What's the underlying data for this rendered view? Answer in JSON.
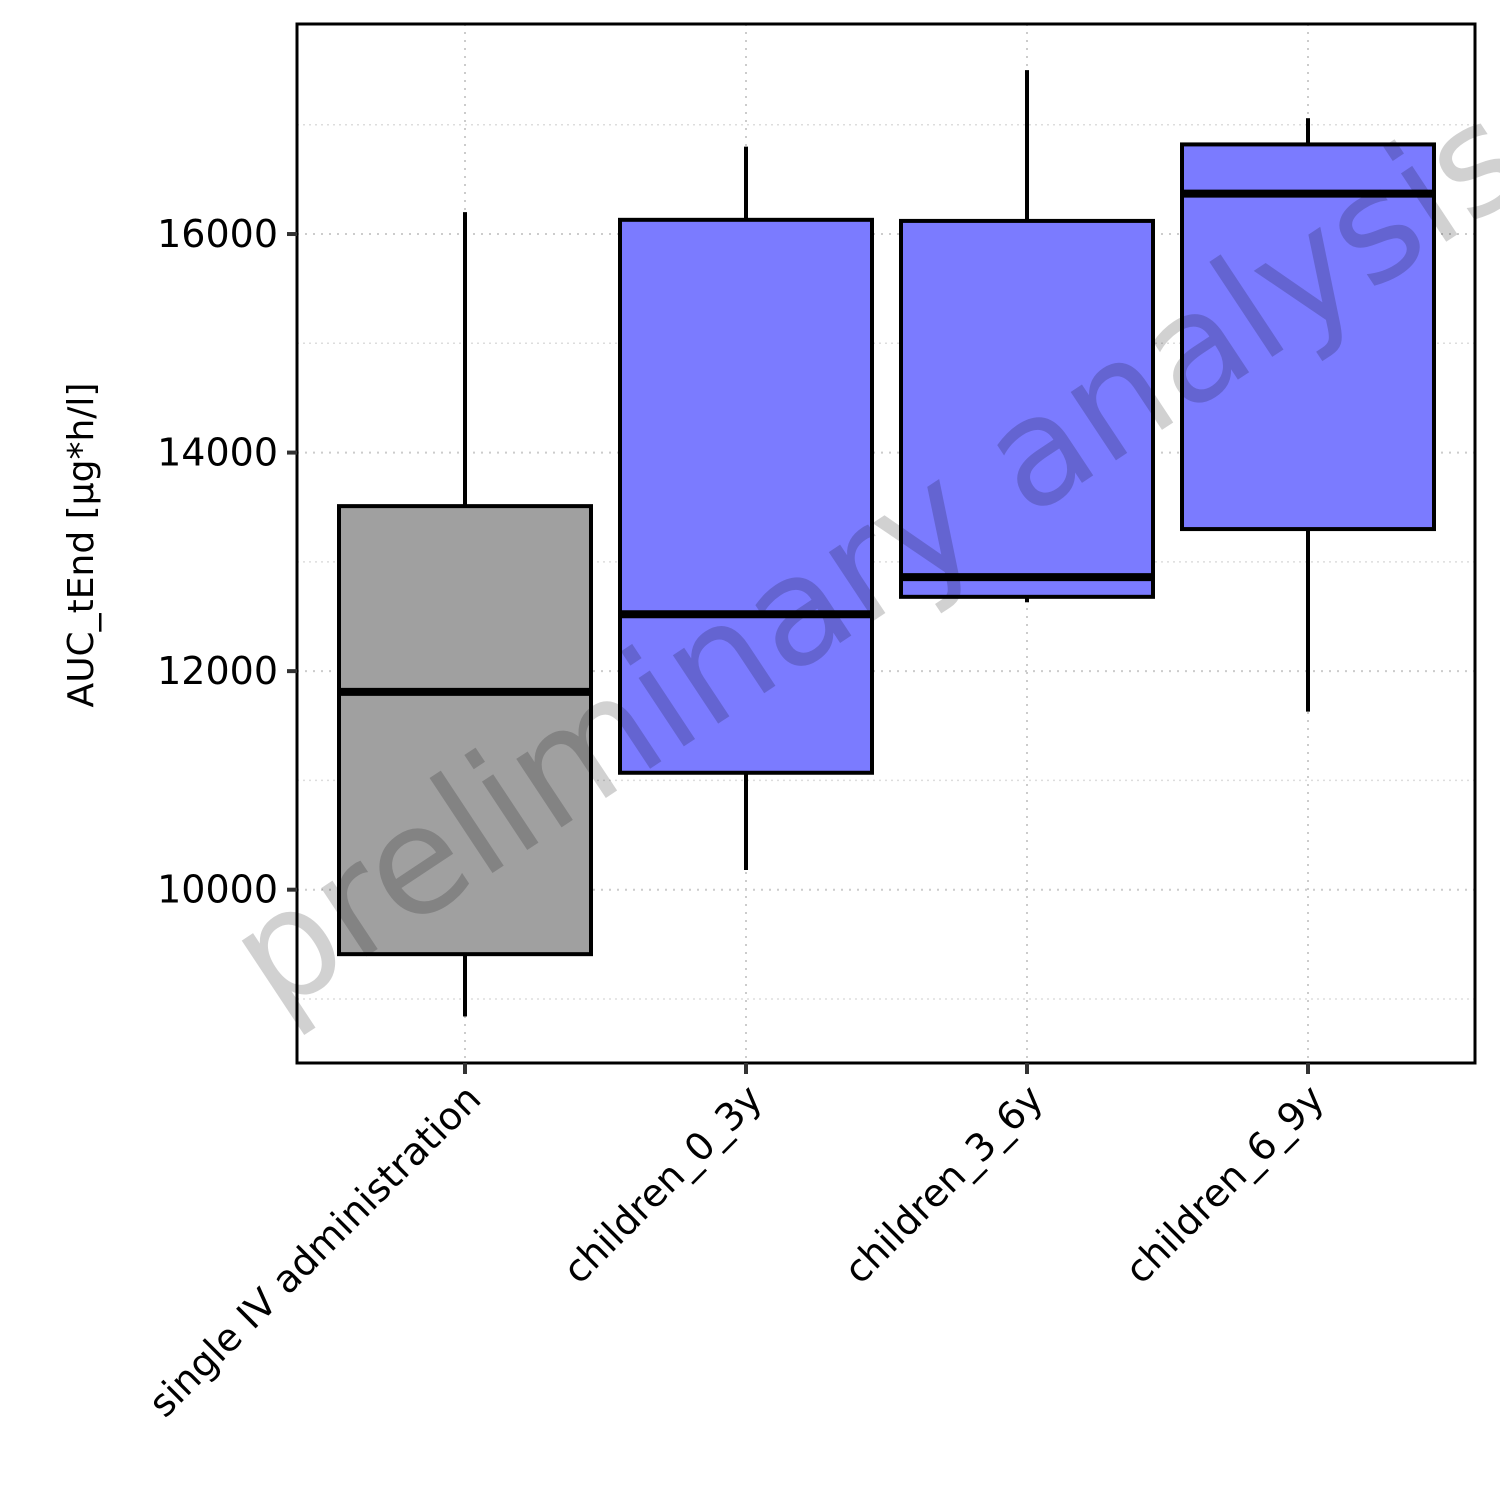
{
  "chart_data": {
    "type": "boxplot",
    "title": "",
    "xlabel": "",
    "ylabel": "AUC_tEnd [µg*h/l]",
    "ylim": [
      8414,
      17922
    ],
    "yticks": [
      10000,
      12000,
      14000,
      16000
    ],
    "ytick_labels": [
      "10000",
      "12000",
      "14000",
      "16000"
    ],
    "minor_gridlines": [
      9000,
      11000,
      13000,
      15000,
      17000
    ],
    "grid": true,
    "watermark": "preliminary analysis",
    "categories": [
      "single IV administration",
      "children_0_3y",
      "children_3_6y",
      "children_6_9y"
    ],
    "boxes": [
      {
        "name": "single IV administration",
        "whisker_low": 8840,
        "q1": 9410,
        "median": 11810,
        "q3": 13510,
        "whisker_high": 16200,
        "color": "#a0a0a0"
      },
      {
        "name": "children_0_3y",
        "whisker_low": 10180,
        "q1": 11070,
        "median": 12520,
        "q3": 16130,
        "whisker_high": 16800,
        "color": "#7b7bff"
      },
      {
        "name": "children_3_6y",
        "whisker_low": 12630,
        "q1": 12680,
        "median": 12860,
        "q3": 16120,
        "whisker_high": 17500,
        "color": "#7b7bff"
      },
      {
        "name": "children_6_9y",
        "whisker_low": 11630,
        "q1": 13300,
        "median": 16370,
        "q3": 16820,
        "whisker_high": 17060,
        "color": "#7b7bff"
      }
    ]
  }
}
